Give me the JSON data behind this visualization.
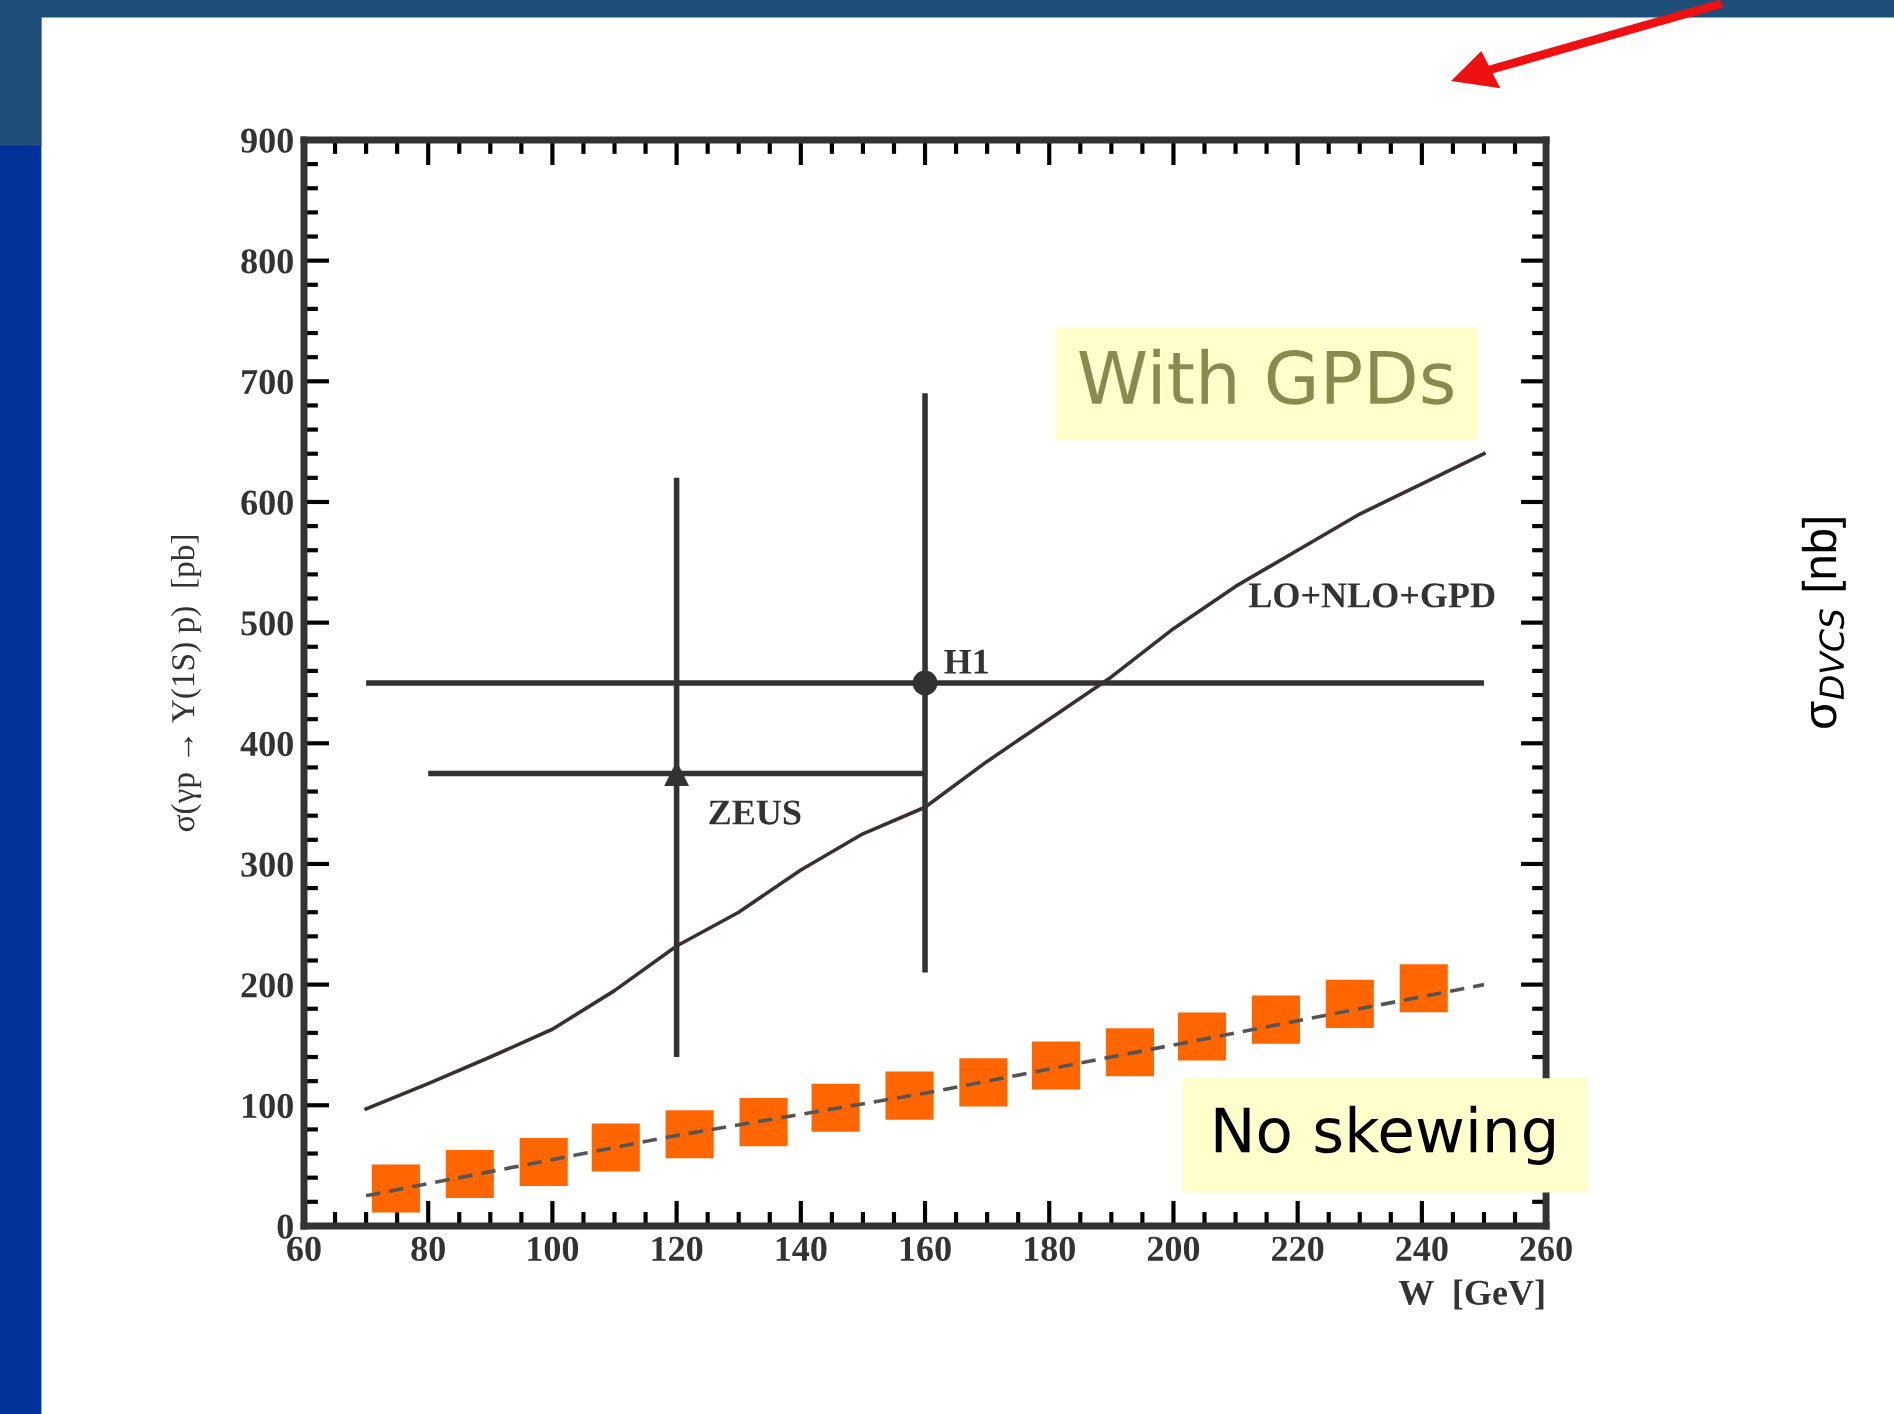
{
  "chart_data": [
    {
      "type": "line",
      "xlabel": "W  [GeV]",
      "ylabel": "σ(γp → Υ(1S) p)  [pb]",
      "xlim": [
        60,
        260
      ],
      "xticks": [
        60,
        80,
        100,
        120,
        140,
        160,
        180,
        200,
        220,
        240,
        260
      ],
      "ylim": [
        0,
        900
      ],
      "yticks": [
        0,
        100,
        200,
        300,
        400,
        500,
        600,
        700,
        800,
        900
      ],
      "grid": false,
      "legend": false,
      "series": [
        {
          "type": "line",
          "color": "#3a3030",
          "line_style": "solid",
          "marker": "none",
          "x": [
            70,
            80,
            90,
            100,
            110,
            120,
            130,
            140,
            150,
            160,
            170,
            180,
            190,
            200,
            210,
            220,
            230,
            240,
            250
          ],
          "values": [
            97,
            118,
            140,
            163,
            195,
            232,
            260,
            295,
            325,
            347,
            385,
            420,
            455,
            495,
            530,
            560,
            590,
            615,
            640
          ]
        },
        {
          "type": "line",
          "color": "#555555",
          "line_style": "dashed",
          "marker": "none",
          "x": [
            70,
            120,
            160,
            200,
            250
          ],
          "values": [
            25,
            75,
            110,
            150,
            200
          ]
        },
        {
          "type": "scatter",
          "color": "#ff6600",
          "marker": "square",
          "x": [
            74.8,
            86.7,
            98.6,
            110.2,
            122.1,
            134,
            145.6,
            157.5,
            169.4,
            181.1,
            193,
            204.6,
            216.5,
            228.4,
            240.3
          ],
          "values": [
            31,
            43,
            53,
            65,
            76,
            86,
            98,
            108,
            119,
            133,
            144,
            157,
            171,
            184,
            197
          ]
        },
        {
          "type": "scatter",
          "color": "#333333",
          "marker": "triangle",
          "x": [
            120
          ],
          "values": [
            375
          ],
          "errors": [
            [
              140,
              620
            ]
          ],
          "xerrors": [
            [
              80,
              160
            ]
          ]
        },
        {
          "type": "scatter",
          "color": "#333333",
          "marker": "circle",
          "x": [
            160
          ],
          "values": [
            450
          ],
          "errors": [
            [
              210,
              690
            ]
          ],
          "xerrors": [
            [
              70,
              250
            ]
          ]
        }
      ],
      "annotations": [
        "H1",
        "ZEUS",
        "LO+NLO+GPD",
        "With GPDs",
        "No skewing"
      ]
    },
    {
      "type": "other",
      "annotations": [
        "σ$_{DVCS}$ [nb]"
      ]
    }
  ]
}
